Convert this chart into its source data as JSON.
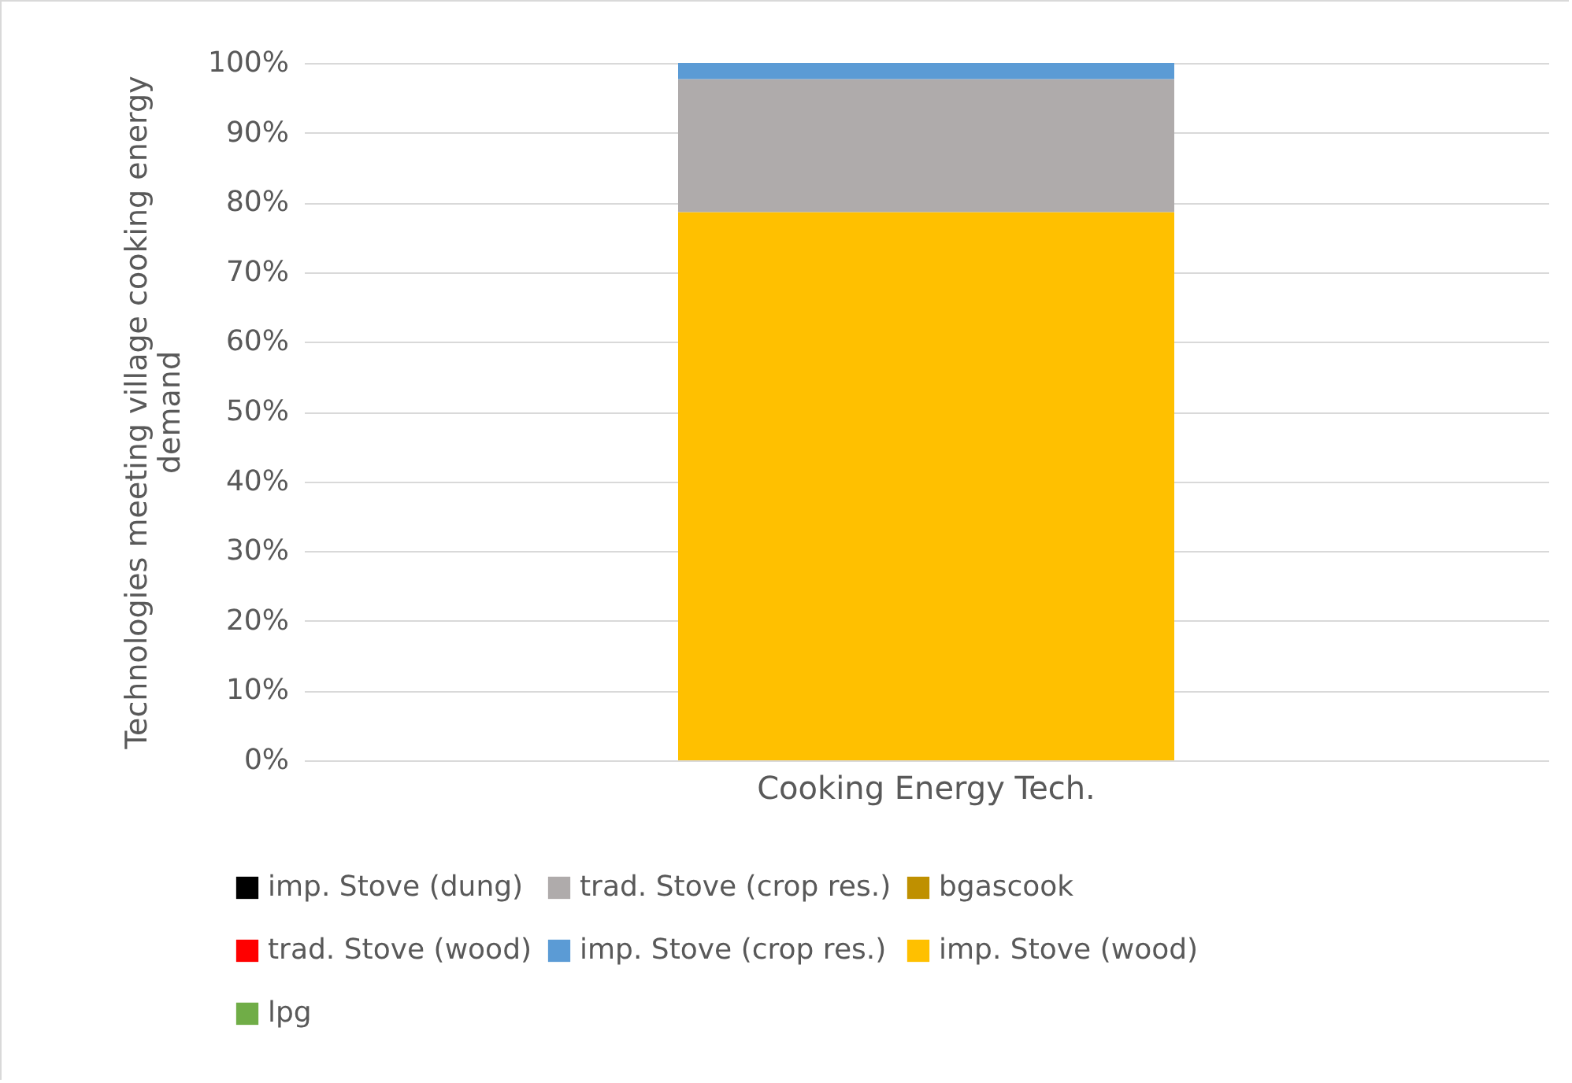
{
  "chart_data": {
    "type": "bar",
    "stacked": true,
    "ylabel": "Technologies meeting village cooking energy demand",
    "categories": [
      "Cooking Energy Tech."
    ],
    "series": [
      {
        "name": "imp. Stove (dung)",
        "color": "#000000",
        "values": [
          0
        ]
      },
      {
        "name": "trad. Stove (wood)",
        "color": "#ff0000",
        "values": [
          0
        ]
      },
      {
        "name": "imp. Stove (wood)",
        "color": "#ffc000",
        "values": [
          78.6
        ]
      },
      {
        "name": "trad. Stove (crop res.)",
        "color": "#afabab",
        "values": [
          19.1
        ]
      },
      {
        "name": "imp. Stove (crop res.)",
        "color": "#5b9bd5",
        "values": [
          2.3
        ]
      },
      {
        "name": "lpg",
        "color": "#70ad47",
        "values": [
          0
        ]
      },
      {
        "name": "bgascook",
        "color": "#bf9000",
        "values": [
          0
        ]
      }
    ],
    "ylim": [
      0,
      100
    ],
    "yticks": [
      {
        "value": 0,
        "label": "0%"
      },
      {
        "value": 10,
        "label": "10%"
      },
      {
        "value": 20,
        "label": "20%"
      },
      {
        "value": 30,
        "label": "30%"
      },
      {
        "value": 40,
        "label": "40%"
      },
      {
        "value": 50,
        "label": "50%"
      },
      {
        "value": 60,
        "label": "60%"
      },
      {
        "value": 70,
        "label": "70%"
      },
      {
        "value": 80,
        "label": "80%"
      },
      {
        "value": 90,
        "label": "90%"
      },
      {
        "value": 100,
        "label": "100%"
      }
    ],
    "grid": "y",
    "legend": "bottom"
  }
}
